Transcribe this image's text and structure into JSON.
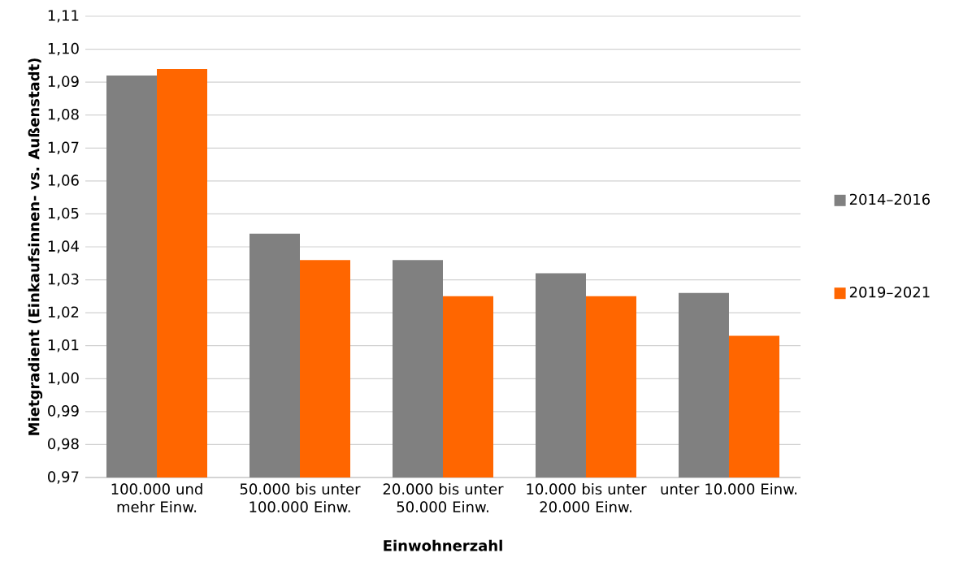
{
  "chart_data": {
    "type": "bar",
    "xlabel": "Einwohnerzahl",
    "ylabel": "Mietgradient (Einkaufsinnen- vs. Außenstadt)",
    "categories": [
      "100.000 und mehr Einw.",
      "50.000 bis unter 100.000 Einw.",
      "20.000 bis unter 50.000 Einw.",
      "10.000 bis unter 20.000 Einw.",
      "unter 10.000 Einw."
    ],
    "series": [
      {
        "name": "2014–2016",
        "color": "#808080",
        "values": [
          1.092,
          1.044,
          1.036,
          1.032,
          1.026
        ]
      },
      {
        "name": "2019–2021",
        "color": "#ff6600",
        "values": [
          1.094,
          1.036,
          1.025,
          1.025,
          1.013
        ]
      }
    ],
    "ylim": [
      0.97,
      1.11
    ],
    "yticks": [
      {
        "value": 0.97,
        "label": "0,97"
      },
      {
        "value": 0.98,
        "label": "0,98"
      },
      {
        "value": 0.99,
        "label": "0,99"
      },
      {
        "value": 1.0,
        "label": "1,00"
      },
      {
        "value": 1.01,
        "label": "1,01"
      },
      {
        "value": 1.02,
        "label": "1,02"
      },
      {
        "value": 1.03,
        "label": "1,03"
      },
      {
        "value": 1.04,
        "label": "1,04"
      },
      {
        "value": 1.05,
        "label": "1,05"
      },
      {
        "value": 1.06,
        "label": "1,06"
      },
      {
        "value": 1.07,
        "label": "1,07"
      },
      {
        "value": 1.08,
        "label": "1,08"
      },
      {
        "value": 1.09,
        "label": "1,09"
      },
      {
        "value": 1.1,
        "label": "1,10"
      },
      {
        "value": 1.11,
        "label": "1,11"
      }
    ],
    "grid": "y",
    "legend": "right"
  }
}
